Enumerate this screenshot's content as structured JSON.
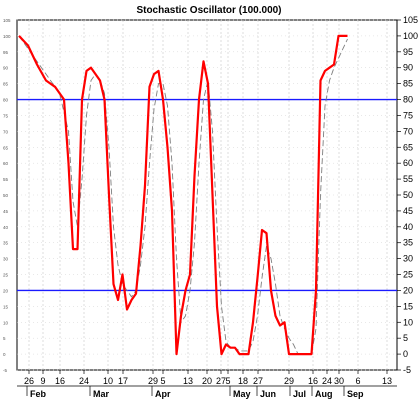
{
  "chart_data": {
    "type": "line",
    "title": "Stochastic Oscillator (100.000)",
    "ylim": [
      -5,
      105
    ],
    "y_ticks": [
      -5,
      0,
      5,
      10,
      15,
      20,
      25,
      30,
      35,
      40,
      45,
      50,
      55,
      60,
      65,
      70,
      75,
      80,
      85,
      90,
      95,
      100,
      105
    ],
    "reference_lines": [
      80,
      20
    ],
    "x_day_labels": [
      "26",
      "9",
      "16",
      "24",
      "10",
      "17",
      "29",
      "5",
      "13",
      "20",
      "27",
      "5",
      "18",
      "27",
      "29",
      "16",
      "24",
      "30",
      "6",
      "13"
    ],
    "x_month_labels": [
      "Feb",
      "Mar",
      "Apr",
      "May",
      "Jun",
      "Jul",
      "Aug",
      "Sep"
    ],
    "grid": true,
    "series": [
      {
        "style": "solid-red",
        "color": "#ff0000",
        "points": [
          [
            0,
            100
          ],
          [
            2,
            97
          ],
          [
            4,
            91
          ],
          [
            6,
            86
          ],
          [
            8,
            84
          ],
          [
            10,
            80
          ],
          [
            11,
            60
          ],
          [
            12,
            33
          ],
          [
            13,
            33
          ],
          [
            14,
            80
          ],
          [
            15,
            89
          ],
          [
            16,
            90
          ],
          [
            17,
            88
          ],
          [
            18,
            86
          ],
          [
            19,
            80
          ],
          [
            20,
            50
          ],
          [
            21,
            22
          ],
          [
            22,
            17
          ],
          [
            23,
            25
          ],
          [
            24,
            14
          ],
          [
            25,
            17
          ],
          [
            26,
            19
          ],
          [
            27,
            34
          ],
          [
            28,
            53
          ],
          [
            29,
            84
          ],
          [
            30,
            88
          ],
          [
            31,
            89
          ],
          [
            32,
            80
          ],
          [
            33,
            65
          ],
          [
            34,
            45
          ],
          [
            35,
            0
          ],
          [
            36,
            12
          ],
          [
            37,
            20
          ],
          [
            38,
            25
          ],
          [
            39,
            56
          ],
          [
            40,
            80
          ],
          [
            41,
            92
          ],
          [
            42,
            85
          ],
          [
            43,
            50
          ],
          [
            44,
            15
          ],
          [
            45,
            0
          ],
          [
            46,
            3
          ],
          [
            47,
            2
          ],
          [
            48,
            2
          ],
          [
            49,
            0
          ],
          [
            50,
            0
          ],
          [
            51,
            0
          ],
          [
            52,
            10
          ],
          [
            53,
            24
          ],
          [
            54,
            39
          ],
          [
            55,
            38
          ],
          [
            56,
            20
          ],
          [
            57,
            12
          ],
          [
            58,
            9
          ],
          [
            59,
            10
          ],
          [
            60,
            0
          ],
          [
            61,
            0
          ],
          [
            62,
            0
          ],
          [
            63,
            0
          ],
          [
            64,
            0
          ],
          [
            65,
            0
          ],
          [
            66,
            20
          ],
          [
            67,
            86
          ],
          [
            68,
            89
          ],
          [
            69,
            90
          ],
          [
            70,
            91
          ],
          [
            71,
            100
          ],
          [
            72,
            100
          ],
          [
            73,
            100
          ]
        ]
      },
      {
        "style": "dashed-gray",
        "color": "#7f7f7f",
        "points": [
          [
            0,
            100
          ],
          [
            3,
            94
          ],
          [
            6,
            88
          ],
          [
            9,
            82
          ],
          [
            11,
            70
          ],
          [
            12,
            48
          ],
          [
            13,
            40
          ],
          [
            14,
            55
          ],
          [
            15,
            75
          ],
          [
            16,
            86
          ],
          [
            17,
            88
          ],
          [
            18,
            86
          ],
          [
            19,
            82
          ],
          [
            20,
            65
          ],
          [
            21,
            40
          ],
          [
            22,
            28
          ],
          [
            23,
            22
          ],
          [
            24,
            20
          ],
          [
            25,
            18
          ],
          [
            26,
            20
          ],
          [
            27,
            28
          ],
          [
            28,
            40
          ],
          [
            29,
            60
          ],
          [
            30,
            77
          ],
          [
            31,
            85
          ],
          [
            32,
            85
          ],
          [
            33,
            78
          ],
          [
            34,
            60
          ],
          [
            35,
            30
          ],
          [
            36,
            10
          ],
          [
            37,
            12
          ],
          [
            38,
            20
          ],
          [
            39,
            35
          ],
          [
            40,
            60
          ],
          [
            41,
            80
          ],
          [
            42,
            86
          ],
          [
            43,
            70
          ],
          [
            44,
            40
          ],
          [
            45,
            15
          ],
          [
            46,
            4
          ],
          [
            47,
            2
          ],
          [
            48,
            2
          ],
          [
            49,
            1
          ],
          [
            50,
            1
          ],
          [
            51,
            1
          ],
          [
            52,
            4
          ],
          [
            53,
            12
          ],
          [
            54,
            24
          ],
          [
            55,
            34
          ],
          [
            56,
            30
          ],
          [
            57,
            22
          ],
          [
            58,
            12
          ],
          [
            59,
            8
          ],
          [
            60,
            5
          ],
          [
            61,
            3
          ],
          [
            62,
            0
          ],
          [
            63,
            0
          ],
          [
            64,
            0
          ],
          [
            65,
            0
          ],
          [
            66,
            8
          ],
          [
            67,
            50
          ],
          [
            68,
            78
          ],
          [
            69,
            86
          ],
          [
            70,
            90
          ],
          [
            71,
            93
          ],
          [
            72,
            96
          ],
          [
            73,
            99
          ]
        ]
      }
    ]
  }
}
